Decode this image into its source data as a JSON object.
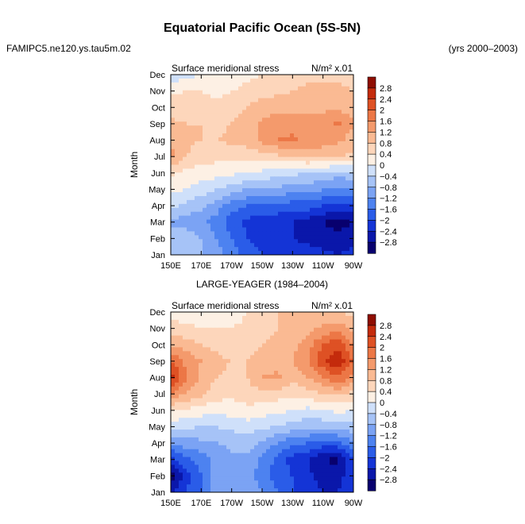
{
  "figure": {
    "title": "Equatorial Pacific Ocean (5S-5N)",
    "left_label": "FAMIPC5.ne120.ys.tau5m.02",
    "right_label": "(yrs 2000–2003)"
  },
  "colorbar_levels": [
    "2.8",
    "2.4",
    "2",
    "1.6",
    "1.2",
    "0.8",
    "0.4",
    "0",
    "−0.4",
    "−0.8",
    "−1.2",
    "−1.6",
    "−2",
    "−2.4",
    "−2.8"
  ],
  "colors": {
    "palette": [
      "#08006e",
      "#0a17aa",
      "#1434d6",
      "#2a5ce8",
      "#4d82f0",
      "#7ba3f4",
      "#a6c3f7",
      "#cfe0fa",
      "#fdf0e4",
      "#fdd6bb",
      "#faba93",
      "#f49a6c",
      "#ec7746",
      "#de5124",
      "#c42b0c",
      "#8f0e02"
    ],
    "background": "#ffffff",
    "axis": "#000000"
  },
  "chart_data": [
    {
      "type": "heatmap",
      "title": "",
      "subtitle_left": "Surface meridional stress",
      "subtitle_right": "N/m² x.01",
      "xlabel": "",
      "ylabel": "Month",
      "x_ticks": [
        "150E",
        "170E",
        "170W",
        "150W",
        "130W",
        "110W",
        "90W"
      ],
      "y_ticks": [
        "Jan",
        "Feb",
        "Mar",
        "Apr",
        "May",
        "Jun",
        "Jul",
        "Aug",
        "Sep",
        "Oct",
        "Nov",
        "Dec"
      ],
      "x_lon": [
        150,
        160,
        170,
        180,
        190,
        200,
        210,
        220,
        230,
        240,
        250,
        260,
        270
      ],
      "x_range": [
        150,
        270
      ],
      "y_range": [
        1,
        12
      ],
      "levels": [
        -2.8,
        -2.4,
        -2.0,
        -1.6,
        -1.2,
        -0.8,
        -0.4,
        0,
        0.4,
        0.8,
        1.2,
        1.6,
        2.0,
        2.4,
        2.8
      ],
      "values": [
        [
          -0.4,
          -0.6,
          -0.8,
          -1.0,
          -1.4,
          -1.8,
          -2.0,
          -2.0,
          -2.2,
          -2.2,
          -2.3,
          -2.4,
          -2.3
        ],
        [
          -0.5,
          -0.5,
          -0.8,
          -1.2,
          -1.6,
          -2.0,
          -2.2,
          -2.3,
          -2.4,
          -2.5,
          -2.6,
          -2.7,
          -2.5
        ],
        [
          -0.9,
          -1.0,
          -1.1,
          -1.4,
          -1.8,
          -2.1,
          -2.3,
          -2.3,
          -2.4,
          -2.6,
          -2.8,
          -3.0,
          -2.8
        ],
        [
          -0.3,
          -0.5,
          -0.7,
          -1.0,
          -1.4,
          -1.6,
          -1.7,
          -1.7,
          -1.8,
          -1.8,
          -2.0,
          -2.1,
          -2.0
        ],
        [
          0.1,
          0.0,
          -0.2,
          -0.4,
          -0.6,
          -0.8,
          -0.9,
          -0.9,
          -1.0,
          -1.0,
          -1.2,
          -1.3,
          -1.2
        ],
        [
          0.5,
          0.3,
          0.2,
          0.2,
          0.1,
          0.0,
          -0.1,
          -0.2,
          -0.3,
          -0.4,
          -0.5,
          -0.6,
          -0.5
        ],
        [
          1.3,
          0.8,
          0.6,
          0.5,
          0.5,
          0.5,
          0.6,
          0.7,
          0.8,
          0.9,
          0.9,
          0.8,
          0.7
        ],
        [
          1.2,
          0.9,
          0.8,
          0.8,
          0.9,
          1.0,
          1.3,
          1.6,
          1.7,
          1.5,
          1.4,
          1.3,
          1.0
        ],
        [
          0.9,
          0.8,
          0.8,
          0.7,
          0.8,
          1.0,
          1.3,
          1.4,
          1.4,
          1.4,
          1.4,
          1.7,
          1.2
        ],
        [
          0.6,
          0.6,
          0.6,
          0.5,
          0.6,
          0.8,
          1.0,
          1.1,
          1.1,
          1.1,
          1.1,
          1.1,
          1.0
        ],
        [
          0.3,
          0.4,
          0.4,
          0.3,
          0.4,
          0.5,
          0.6,
          0.7,
          0.8,
          0.9,
          0.9,
          0.9,
          0.8
        ],
        [
          -0.3,
          -0.1,
          0.0,
          0.1,
          0.2,
          0.3,
          0.4,
          0.5,
          0.6,
          0.7,
          0.7,
          0.7,
          0.6
        ]
      ]
    },
    {
      "type": "heatmap",
      "title": "LARGE-YEAGER (1984–2004)",
      "subtitle_left": "Surface meridional stress",
      "subtitle_right": "N/m² x.01",
      "xlabel": "",
      "ylabel": "Month",
      "x_ticks": [
        "150E",
        "170E",
        "170W",
        "150W",
        "130W",
        "110W",
        "90W"
      ],
      "y_ticks": [
        "Jan",
        "Feb",
        "Mar",
        "Apr",
        "May",
        "Jun",
        "Jul",
        "Aug",
        "Sep",
        "Oct",
        "Nov",
        "Dec"
      ],
      "x_lon": [
        150,
        160,
        170,
        180,
        190,
        200,
        210,
        220,
        230,
        240,
        250,
        260,
        270
      ],
      "x_range": [
        150,
        270
      ],
      "y_range": [
        1,
        12
      ],
      "levels": [
        -2.8,
        -2.4,
        -2.0,
        -1.6,
        -1.2,
        -0.8,
        -0.4,
        0,
        0.4,
        0.8,
        1.2,
        1.6,
        2.0,
        2.4,
        2.8
      ],
      "values": [
        [
          -2.4,
          -2.0,
          -1.6,
          -1.0,
          -0.8,
          -0.8,
          -1.2,
          -1.6,
          -2.0,
          -2.2,
          -2.4,
          -2.4,
          -2.0
        ],
        [
          -3.0,
          -2.2,
          -1.6,
          -1.0,
          -0.9,
          -1.0,
          -1.4,
          -1.8,
          -2.0,
          -2.3,
          -2.6,
          -2.6,
          -2.0
        ],
        [
          -2.2,
          -1.7,
          -1.4,
          -1.1,
          -0.9,
          -0.9,
          -1.3,
          -1.7,
          -2.2,
          -2.4,
          -2.8,
          -2.9,
          -2.0
        ],
        [
          -1.2,
          -1.0,
          -0.9,
          -0.8,
          -0.7,
          -0.6,
          -0.9,
          -1.2,
          -1.5,
          -1.6,
          -1.8,
          -1.7,
          -1.3
        ],
        [
          -0.2,
          -0.3,
          -0.4,
          -0.4,
          -0.3,
          -0.2,
          -0.3,
          -0.4,
          -0.6,
          -0.7,
          -0.7,
          -0.6,
          -0.5
        ],
        [
          0.4,
          0.3,
          0.2,
          0.1,
          0.2,
          0.3,
          0.2,
          0.1,
          0.0,
          -0.1,
          0.0,
          0.1,
          0.0
        ],
        [
          1.6,
          1.2,
          0.9,
          0.6,
          0.5,
          0.6,
          0.7,
          0.6,
          0.5,
          0.6,
          0.8,
          0.9,
          0.7
        ],
        [
          2.6,
          1.7,
          1.1,
          0.8,
          0.7,
          0.8,
          1.2,
          1.3,
          0.9,
          1.2,
          1.6,
          2.0,
          1.4
        ],
        [
          2.0,
          1.5,
          1.2,
          0.9,
          0.8,
          0.8,
          1.0,
          1.0,
          1.2,
          1.6,
          2.3,
          2.8,
          1.9
        ],
        [
          1.2,
          1.0,
          0.8,
          0.7,
          0.6,
          0.6,
          0.8,
          0.9,
          1.1,
          1.4,
          2.0,
          2.3,
          1.6
        ],
        [
          0.5,
          0.5,
          0.4,
          0.4,
          0.4,
          0.5,
          0.7,
          0.8,
          0.9,
          1.1,
          1.3,
          1.4,
          1.1
        ],
        [
          0.3,
          0.2,
          0.1,
          0.0,
          0.2,
          0.4,
          0.6,
          0.8,
          0.9,
          0.9,
          0.9,
          0.8,
          0.7
        ]
      ]
    }
  ]
}
